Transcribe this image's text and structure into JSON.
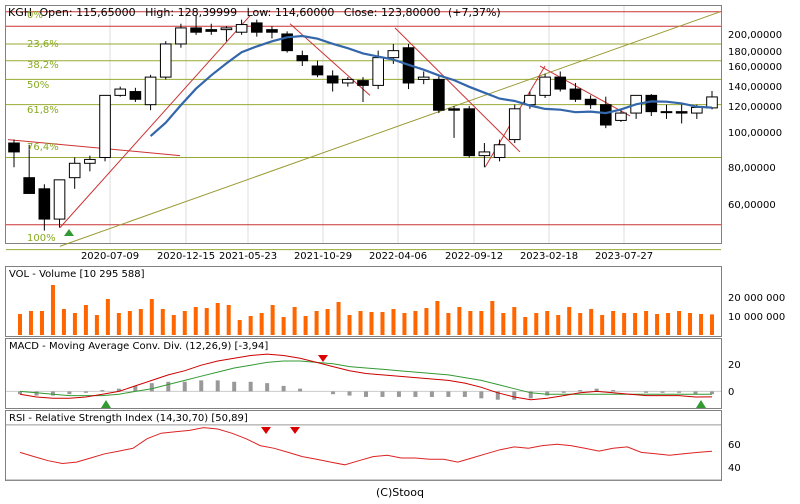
{
  "main": {
    "header": {
      "ticker": "KGH",
      "open": "Open: 115,65000",
      "high": "High: 128,39999",
      "low": "Low: 114,60000",
      "close": "Close: 123,80000",
      "change": "(+7,37%)"
    },
    "y_labels": [
      "200,00000",
      "180,00000",
      "160,00000",
      "140,00000",
      "120,00000",
      "100,00000",
      "80,00000",
      "60,00000"
    ],
    "x_labels": [
      "2020-07-09",
      "2020-12-15",
      "2021-05-23",
      "2021-10-29",
      "2022-04-06",
      "2022-09-12",
      "2023-02-18",
      "2023-07-27"
    ],
    "fib_labels": [
      "0%",
      "23,6%",
      "38,2%",
      "50%",
      "61,8%",
      "76,4%",
      "100%"
    ]
  },
  "volume": {
    "title": "VOL - Volume [10 295 588]",
    "y_labels": [
      "20 000 000",
      "10 000 000"
    ]
  },
  "macd": {
    "title": "MACD - Moving Average Conv. Div. (12,26,9) [-3,94]",
    "y_labels": [
      "20",
      "0"
    ]
  },
  "rsi": {
    "title": "RSI - Relative Strength Index (14,30,70) [50,89]",
    "y_labels": [
      "60",
      "40"
    ]
  },
  "footer": "(C)Stooq",
  "colors": {
    "frame": "#808080",
    "bull": "#ffffff",
    "bear": "#000000",
    "ma": "#3366aa",
    "trend_red": "#cc3333",
    "trend_olive": "#999933",
    "fib_line": "#99aa33",
    "hline_red": "#cc3333",
    "volume_bar": "#ff6600",
    "macd_hist": "#999999",
    "macd_line": "#cc0000",
    "signal_line": "#339933",
    "rsi_line": "#dd2222",
    "arrow_up": "#339933",
    "arrow_down": "#dd0000"
  },
  "chart_data": [
    {
      "type": "candlestick",
      "title": "KGH",
      "log_scale": true,
      "ylim": [
        50,
        215
      ],
      "x_ticks": [
        "2020-07-09",
        "2020-12-15",
        "2021-05-23",
        "2021-10-29",
        "2022-04-06",
        "2022-09-12",
        "2023-02-18",
        "2023-07-27"
      ],
      "candles": [
        {
          "o": 93,
          "h": 95,
          "l": 80,
          "c": 88
        },
        {
          "o": 75,
          "h": 92,
          "l": 68,
          "c": 68
        },
        {
          "o": 70,
          "h": 72,
          "l": 54,
          "c": 58
        },
        {
          "o": 58,
          "h": 74,
          "l": 55,
          "c": 74
        },
        {
          "o": 75,
          "h": 85,
          "l": 70,
          "c": 82
        },
        {
          "o": 82,
          "h": 86,
          "l": 78,
          "c": 84
        },
        {
          "o": 85,
          "h": 125,
          "l": 83,
          "c": 125
        },
        {
          "o": 125,
          "h": 132,
          "l": 124,
          "c": 130
        },
        {
          "o": 128,
          "h": 131,
          "l": 120,
          "c": 122
        },
        {
          "o": 118,
          "h": 142,
          "l": 114,
          "c": 140
        },
        {
          "o": 140,
          "h": 175,
          "l": 138,
          "c": 172
        },
        {
          "o": 172,
          "h": 195,
          "l": 168,
          "c": 190
        },
        {
          "o": 190,
          "h": 205,
          "l": 182,
          "c": 185
        },
        {
          "o": 188,
          "h": 195,
          "l": 182,
          "c": 186
        },
        {
          "o": 188,
          "h": 192,
          "l": 175,
          "c": 190
        },
        {
          "o": 185,
          "h": 200,
          "l": 182,
          "c": 194
        },
        {
          "o": 196,
          "h": 200,
          "l": 180,
          "c": 185
        },
        {
          "o": 188,
          "h": 192,
          "l": 178,
          "c": 185
        },
        {
          "o": 183,
          "h": 186,
          "l": 163,
          "c": 165
        },
        {
          "o": 160,
          "h": 165,
          "l": 150,
          "c": 155
        },
        {
          "o": 150,
          "h": 155,
          "l": 140,
          "c": 142
        },
        {
          "o": 141,
          "h": 146,
          "l": 128,
          "c": 135
        },
        {
          "o": 135,
          "h": 140,
          "l": 132,
          "c": 138
        },
        {
          "o": 137,
          "h": 140,
          "l": 120,
          "c": 133
        },
        {
          "o": 133,
          "h": 165,
          "l": 130,
          "c": 158
        },
        {
          "o": 158,
          "h": 172,
          "l": 152,
          "c": 165
        },
        {
          "o": 168,
          "h": 172,
          "l": 130,
          "c": 135
        },
        {
          "o": 138,
          "h": 145,
          "l": 134,
          "c": 140
        },
        {
          "o": 138,
          "h": 142,
          "l": 112,
          "c": 114
        },
        {
          "o": 115,
          "h": 117,
          "l": 96,
          "c": 114
        },
        {
          "o": 115,
          "h": 117,
          "l": 85,
          "c": 86
        },
        {
          "o": 86,
          "h": 93,
          "l": 80,
          "c": 88
        },
        {
          "o": 85,
          "h": 95,
          "l": 83,
          "c": 92
        },
        {
          "o": 95,
          "h": 118,
          "l": 93,
          "c": 115
        },
        {
          "o": 118,
          "h": 128,
          "l": 115,
          "c": 125
        },
        {
          "o": 125,
          "h": 143,
          "l": 123,
          "c": 140
        },
        {
          "o": 140,
          "h": 145,
          "l": 128,
          "c": 130
        },
        {
          "o": 130,
          "h": 135,
          "l": 120,
          "c": 122
        },
        {
          "o": 122,
          "h": 125,
          "l": 115,
          "c": 118
        },
        {
          "o": 118,
          "h": 124,
          "l": 102,
          "c": 104
        },
        {
          "o": 107,
          "h": 115,
          "l": 106,
          "c": 112
        },
        {
          "o": 112,
          "h": 125,
          "l": 108,
          "c": 125
        },
        {
          "o": 125,
          "h": 126,
          "l": 110,
          "c": 113
        },
        {
          "o": 113,
          "h": 118,
          "l": 108,
          "c": 113
        },
        {
          "o": 113,
          "h": 118,
          "l": 105,
          "c": 112
        },
        {
          "o": 112,
          "h": 118,
          "l": 108,
          "c": 116
        },
        {
          "o": 115.65,
          "h": 128.39999,
          "l": 114.6,
          "c": 123.8
        }
      ],
      "moving_average": [
        null,
        null,
        null,
        null,
        null,
        null,
        null,
        null,
        null,
        null,
        null,
        null,
        null,
        null,
        null,
        null,
        null,
        null,
        null,
        null,
        null,
        null,
        null,
        null,
        null,
        null,
        null,
        null,
        null,
        null,
        null,
        null,
        null,
        null,
        null,
        null,
        null,
        null,
        null,
        null,
        null,
        null,
        null,
        null,
        null,
        null,
        null
      ],
      "horizontal_lines": [
        210,
        192,
        172,
        155,
        138,
        118,
        85,
        56,
        48
      ],
      "fib_levels": [
        "0%",
        "23,6%",
        "38,2%",
        "50%",
        "61,8%",
        "76,4%",
        "100%"
      ]
    },
    {
      "type": "bar",
      "title": "VOL - Volume [10 295 588]",
      "ylim": [
        0,
        30000000
      ],
      "values": [
        10500000,
        12000000,
        12000000,
        25000000,
        13000000,
        11000000,
        15000000,
        10000000,
        18000000,
        11000000,
        12000000,
        13000000,
        18000000,
        13000000,
        10000000,
        12000000,
        14000000,
        13500000,
        16000000,
        15000000,
        7500000,
        9500000,
        11000000,
        15000000,
        9000000,
        14000000,
        9500000,
        12000000,
        13000000,
        16500000,
        10000000,
        12000000,
        11500000,
        11500000,
        13000000,
        11000000,
        12000000,
        13500000,
        17000000,
        11000000,
        14000000,
        12000000,
        12000000,
        17000000,
        11000000,
        14000000,
        9000000,
        11000000,
        12000000,
        10000000,
        14000000,
        11000000,
        13000000,
        10000000,
        12000000,
        11000000,
        11000000,
        12000000,
        10500000,
        11000000,
        12000000,
        11000000,
        10500000,
        10295588
      ]
    },
    {
      "type": "line",
      "title": "MACD - Moving Average Conv. Div. (12,26,9) [-3,94]",
      "ylim": [
        -12,
        30
      ],
      "macd": [
        -2,
        -4,
        -5,
        -5,
        -4,
        -2,
        0,
        4,
        8,
        12,
        15,
        19,
        22,
        24,
        26,
        27,
        26,
        24,
        21,
        18,
        15,
        13,
        12,
        11,
        10,
        9,
        8,
        6,
        3,
        -1,
        -4,
        -6,
        -5,
        -3,
        -1,
        0,
        -1,
        -2,
        -3,
        -3,
        -3,
        -4,
        -3.94
      ],
      "signal": [
        0,
        -1,
        -2,
        -3,
        -3,
        -3,
        -2,
        0,
        2,
        5,
        8,
        11,
        14,
        17,
        19,
        21,
        22,
        22,
        21,
        20,
        18,
        17,
        16,
        15,
        14,
        13,
        12,
        10,
        8,
        5,
        2,
        -1,
        -2,
        -2,
        -2,
        -2,
        -2,
        -2,
        -2,
        -2,
        -2,
        -2,
        -2
      ],
      "histogram": [
        -2,
        -3,
        -3,
        -2,
        -1,
        1,
        2,
        4,
        6,
        7,
        7,
        8,
        8,
        7,
        7,
        6,
        4,
        2,
        0,
        -2,
        -3,
        -4,
        -4,
        -4,
        -4,
        -4,
        -4,
        -4,
        -5,
        -6,
        -6,
        -5,
        -3,
        -1,
        1,
        2,
        1,
        0,
        -1,
        -1,
        -1,
        -2,
        -2
      ]
    },
    {
      "type": "line",
      "title": "RSI - Relative Strength Index (14,30,70) [50,89]",
      "ylim": [
        30,
        75
      ],
      "values": [
        50,
        47,
        44,
        42,
        43,
        46,
        49,
        51,
        53,
        60,
        64,
        65,
        66,
        68,
        67,
        64,
        60,
        55,
        53,
        50,
        47,
        45,
        43,
        41,
        44,
        47,
        48,
        46,
        46,
        45,
        45,
        43,
        46,
        49,
        52,
        54,
        53,
        55,
        56,
        55,
        53,
        51,
        53,
        54,
        50,
        49,
        48,
        49,
        50,
        50.89
      ]
    }
  ]
}
